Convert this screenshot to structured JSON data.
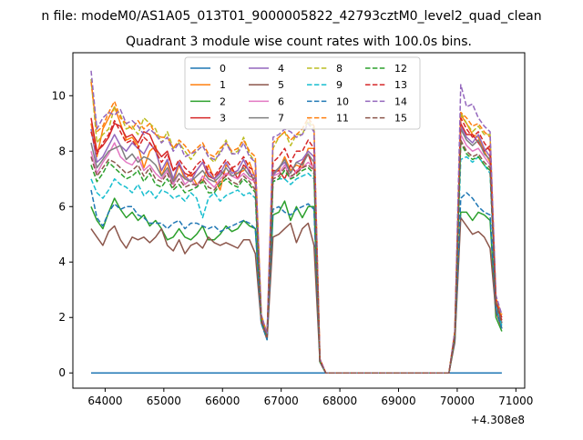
{
  "suptitle": "n file: modeM0/AS1A05_013T01_9000005822_42793cztM0_level2_quad_clean",
  "chart_data": {
    "type": "line",
    "title": "Quadrant 3 module wise count rates with 100.0s bins.",
    "xlabel": "",
    "ylabel": "",
    "x_offset_label": "+4.308e8",
    "xlim": [
      63450,
      71150
    ],
    "ylim": [
      -0.55,
      11.55
    ],
    "xticks": [
      64000,
      65000,
      66000,
      67000,
      68000,
      69000,
      70000,
      71000
    ],
    "yticks": [
      0,
      2,
      4,
      6,
      8,
      10
    ],
    "grid": false,
    "legend_placement": "top-center",
    "legend_columns": 4,
    "x": [
      63760,
      63860,
      63960,
      64060,
      64160,
      64260,
      64360,
      64460,
      64560,
      64660,
      64760,
      64860,
      64960,
      65060,
      65160,
      65260,
      65360,
      65460,
      65560,
      65660,
      65760,
      65860,
      65960,
      66060,
      66160,
      66260,
      66360,
      66460,
      66560,
      66660,
      66760,
      66860,
      66960,
      67060,
      67160,
      67260,
      67360,
      67460,
      67560,
      67660,
      67760,
      67860,
      67960,
      68060,
      69860,
      69960,
      70060,
      70160,
      70260,
      70360,
      70460,
      70560,
      70660,
      70760
    ],
    "series": [
      {
        "name": "0",
        "color": "#1f77b4",
        "dash": "solid",
        "values": [
          0,
          0,
          0,
          0,
          0,
          0,
          0,
          0,
          0,
          0,
          0,
          0,
          0,
          0,
          0,
          0,
          0,
          0,
          0,
          0,
          0,
          0,
          0,
          0,
          0,
          0,
          0,
          0,
          0,
          0,
          0,
          0,
          0,
          0,
          0,
          0,
          0,
          0,
          0,
          0,
          0,
          0,
          0,
          0,
          0,
          0,
          0,
          0,
          0,
          0,
          0,
          0,
          0,
          0
        ]
      },
      {
        "name": "1",
        "color": "#ff7f0e",
        "dash": "solid",
        "values": [
          9.0,
          7.8,
          8.8,
          9.2,
          9.6,
          9.0,
          8.4,
          8.5,
          8.2,
          7.4,
          8.0,
          8.2,
          7.1,
          7.6,
          6.9,
          7.5,
          7.0,
          7.2,
          6.8,
          6.9,
          7.5,
          7.0,
          6.6,
          7.5,
          7.3,
          7.2,
          7.3,
          7.6,
          7.0,
          2.0,
          1.3,
          7.2,
          7.3,
          7.8,
          7.3,
          7.5,
          7.4,
          8.1,
          8.1,
          0.5,
          0,
          0,
          0,
          0,
          0,
          1.5,
          9.3,
          9.0,
          8.6,
          8.5,
          8.0,
          7.6,
          2.5,
          1.6
        ]
      },
      {
        "name": "2",
        "color": "#2ca02c",
        "dash": "solid",
        "values": [
          6.0,
          5.5,
          5.2,
          5.8,
          6.3,
          5.9,
          5.6,
          5.8,
          5.5,
          5.7,
          5.3,
          5.5,
          5.2,
          4.8,
          4.9,
          5.2,
          4.9,
          4.8,
          5.0,
          5.3,
          4.8,
          4.8,
          5.0,
          5.3,
          5.1,
          5.2,
          5.5,
          5.3,
          5.2,
          1.9,
          1.2,
          5.7,
          5.8,
          6.2,
          5.5,
          6.0,
          5.6,
          6.0,
          6.0,
          0.4,
          0,
          0,
          0,
          0,
          0,
          1.2,
          5.8,
          5.8,
          5.5,
          5.8,
          5.7,
          5.5,
          2.0,
          1.5
        ]
      },
      {
        "name": "3",
        "color": "#d62728",
        "dash": "solid",
        "values": [
          9.2,
          8.0,
          8.2,
          8.5,
          9.0,
          8.9,
          8.5,
          8.6,
          8.3,
          8.7,
          8.6,
          8.1,
          7.8,
          8.0,
          7.3,
          7.5,
          7.2,
          7.1,
          7.3,
          7.6,
          7.1,
          7.0,
          7.3,
          7.1,
          7.4,
          7.0,
          7.5,
          7.3,
          6.8,
          1.9,
          1.3,
          7.3,
          7.3,
          7.0,
          7.5,
          7.2,
          7.6,
          7.9,
          7.3,
          0.4,
          0,
          0,
          0,
          0,
          0,
          1.4,
          9.0,
          8.6,
          8.6,
          8.3,
          8.0,
          8.2,
          2.6,
          2.0
        ]
      },
      {
        "name": "4",
        "color": "#9467bd",
        "dash": "solid",
        "values": [
          8.8,
          7.6,
          7.8,
          8.2,
          8.6,
          8.2,
          8.0,
          8.3,
          8.1,
          7.9,
          8.3,
          8.0,
          7.3,
          7.7,
          7.0,
          7.6,
          7.1,
          6.9,
          7.3,
          7.6,
          7.2,
          7.0,
          7.2,
          7.6,
          7.2,
          7.3,
          7.7,
          7.2,
          7.1,
          1.9,
          1.3,
          7.1,
          7.4,
          7.6,
          7.2,
          7.6,
          7.7,
          8.0,
          7.8,
          0.4,
          0,
          0,
          0,
          0,
          0,
          1.4,
          8.9,
          8.5,
          8.3,
          8.6,
          8.1,
          7.8,
          2.6,
          1.8
        ]
      },
      {
        "name": "5",
        "color": "#8c564b",
        "dash": "solid",
        "values": [
          5.2,
          4.9,
          4.6,
          5.1,
          5.3,
          4.8,
          4.5,
          4.9,
          4.8,
          4.9,
          4.7,
          4.9,
          5.2,
          4.6,
          4.4,
          4.8,
          4.3,
          4.6,
          4.7,
          4.5,
          4.9,
          4.7,
          4.6,
          4.7,
          4.6,
          4.5,
          4.8,
          4.8,
          4.3,
          1.8,
          1.2,
          4.9,
          5.0,
          5.2,
          5.4,
          4.7,
          5.2,
          5.4,
          4.6,
          0.4,
          0,
          0,
          0,
          0,
          0,
          1.1,
          5.6,
          5.3,
          5.0,
          5.1,
          4.9,
          4.5,
          2.2,
          1.6
        ]
      },
      {
        "name": "6",
        "color": "#e377c2",
        "dash": "solid",
        "values": [
          8.0,
          7.2,
          7.6,
          7.9,
          8.3,
          7.8,
          7.6,
          7.5,
          7.8,
          7.3,
          7.5,
          7.2,
          7.0,
          7.3,
          6.8,
          7.2,
          6.8,
          7.0,
          6.7,
          7.1,
          6.9,
          6.7,
          7.0,
          7.2,
          7.1,
          7.0,
          7.2,
          7.0,
          6.9,
          1.9,
          1.3,
          7.1,
          7.2,
          7.5,
          7.0,
          7.3,
          7.4,
          7.6,
          7.4,
          0.4,
          0,
          0,
          0,
          0,
          0,
          1.3,
          8.6,
          8.2,
          8.0,
          8.1,
          7.8,
          7.5,
          2.5,
          1.8
        ]
      },
      {
        "name": "7",
        "color": "#7f7f7f",
        "dash": "solid",
        "values": [
          8.3,
          7.4,
          7.7,
          8.0,
          8.1,
          8.2,
          7.7,
          7.9,
          7.6,
          7.8,
          7.7,
          7.5,
          7.1,
          7.4,
          6.9,
          7.2,
          7.0,
          6.9,
          7.1,
          7.3,
          7.0,
          6.9,
          7.1,
          7.4,
          7.1,
          7.2,
          7.4,
          7.1,
          7.0,
          2.0,
          1.3,
          7.2,
          7.4,
          7.7,
          7.2,
          7.6,
          7.5,
          7.9,
          7.6,
          0.4,
          0,
          0,
          0,
          0,
          0,
          1.4,
          8.8,
          8.4,
          8.2,
          8.4,
          7.9,
          7.7,
          2.6,
          1.8
        ]
      },
      {
        "name": "8",
        "color": "#bcbd22",
        "dash": "dashed",
        "values": [
          10.6,
          8.3,
          8.6,
          8.8,
          9.6,
          9.3,
          8.8,
          8.9,
          8.6,
          9.2,
          9.0,
          8.8,
          8.3,
          8.7,
          8.1,
          8.3,
          8.0,
          7.7,
          8.0,
          8.2,
          7.8,
          7.6,
          8.0,
          8.4,
          7.9,
          8.0,
          8.5,
          7.9,
          7.6,
          2.1,
          1.4,
          8.1,
          8.5,
          8.7,
          8.2,
          8.6,
          8.6,
          9.1,
          8.8,
          0.5,
          0,
          0,
          0,
          0,
          0,
          1.5,
          9.4,
          9.0,
          8.7,
          8.9,
          8.6,
          8.6,
          2.7,
          2.0
        ]
      },
      {
        "name": "9",
        "color": "#17becf",
        "dash": "dashed",
        "values": [
          7.0,
          6.5,
          6.3,
          6.6,
          7.0,
          6.8,
          6.7,
          6.5,
          6.8,
          6.4,
          6.6,
          6.3,
          6.6,
          6.5,
          6.3,
          6.4,
          6.2,
          6.5,
          6.3,
          5.6,
          6.3,
          6.5,
          6.2,
          6.4,
          6.5,
          6.6,
          6.4,
          6.5,
          6.3,
          1.8,
          1.2,
          6.9,
          7.0,
          7.0,
          6.8,
          7.0,
          7.1,
          7.2,
          7.0,
          0.4,
          0,
          0,
          0,
          0,
          0,
          1.3,
          7.7,
          7.8,
          7.6,
          7.8,
          7.5,
          7.2,
          2.4,
          1.7
        ]
      },
      {
        "name": "10",
        "color": "#1f77b4",
        "dash": "dashed",
        "values": [
          6.6,
          5.6,
          5.3,
          5.8,
          6.1,
          5.9,
          6.0,
          6.0,
          5.7,
          5.6,
          5.4,
          5.4,
          5.4,
          5.2,
          5.4,
          5.5,
          5.2,
          5.4,
          5.4,
          5.3,
          5.2,
          5.3,
          5.1,
          5.2,
          5.3,
          5.4,
          5.5,
          5.4,
          5.2,
          1.8,
          1.2,
          5.9,
          6.0,
          5.8,
          5.7,
          5.9,
          6.0,
          6.1,
          5.9,
          0.4,
          0,
          0,
          0,
          0,
          0,
          1.2,
          6.3,
          6.5,
          6.3,
          6.0,
          5.8,
          5.7,
          2.3,
          1.6
        ]
      },
      {
        "name": "11",
        "color": "#ff7f0e",
        "dash": "dashed",
        "values": [
          10.5,
          8.7,
          8.9,
          9.4,
          9.8,
          9.2,
          9.0,
          8.8,
          9.1,
          8.8,
          9.0,
          8.6,
          8.5,
          8.5,
          8.1,
          8.4,
          8.2,
          7.9,
          8.1,
          8.3,
          7.9,
          7.8,
          8.1,
          8.3,
          8.0,
          8.1,
          8.4,
          8.0,
          7.8,
          2.1,
          1.4,
          8.3,
          8.5,
          8.7,
          8.4,
          8.6,
          8.8,
          9.2,
          8.9,
          0.5,
          0,
          0,
          0,
          0,
          0,
          1.5,
          9.4,
          9.2,
          8.9,
          9.0,
          8.7,
          8.5,
          2.7,
          2.1
        ]
      },
      {
        "name": "12",
        "color": "#2ca02c",
        "dash": "dashed",
        "values": [
          7.5,
          6.9,
          7.2,
          7.6,
          7.4,
          7.2,
          7.0,
          7.1,
          7.3,
          6.9,
          7.2,
          6.8,
          6.7,
          7.0,
          6.6,
          6.8,
          6.5,
          6.6,
          6.7,
          6.9,
          6.5,
          6.5,
          6.8,
          7.0,
          6.8,
          6.7,
          7.0,
          6.8,
          6.5,
          1.9,
          1.3,
          6.9,
          7.0,
          7.3,
          7.0,
          7.1,
          7.3,
          7.4,
          7.2,
          0.4,
          0,
          0,
          0,
          0,
          0,
          1.3,
          8.3,
          7.9,
          7.7,
          7.8,
          7.5,
          7.3,
          2.5,
          1.8
        ]
      },
      {
        "name": "13",
        "color": "#d62728",
        "dash": "dashed",
        "values": [
          8.7,
          7.9,
          8.3,
          8.6,
          9.1,
          8.7,
          8.3,
          8.4,
          8.1,
          8.5,
          8.3,
          8.0,
          7.6,
          7.9,
          7.3,
          7.7,
          7.4,
          7.2,
          7.5,
          7.7,
          7.3,
          7.1,
          7.4,
          7.7,
          7.4,
          7.5,
          7.8,
          7.4,
          7.3,
          2.0,
          1.3,
          7.6,
          7.8,
          8.1,
          7.6,
          8.0,
          8.0,
          8.4,
          8.1,
          0.5,
          0,
          0,
          0,
          0,
          0,
          1.4,
          9.2,
          8.8,
          8.5,
          8.7,
          8.3,
          8.0,
          2.6,
          1.9
        ]
      },
      {
        "name": "14",
        "color": "#9467bd",
        "dash": "dashed",
        "values": [
          10.9,
          8.8,
          9.2,
          9.4,
          9.3,
          9.5,
          9.0,
          9.1,
          8.9,
          8.6,
          8.8,
          8.6,
          8.3,
          8.5,
          8.0,
          8.3,
          7.8,
          7.9,
          8.0,
          8.2,
          7.8,
          7.7,
          7.9,
          8.3,
          7.9,
          7.9,
          8.3,
          7.8,
          7.6,
          2.1,
          1.4,
          8.5,
          8.6,
          8.8,
          8.7,
          8.5,
          8.6,
          9.0,
          8.7,
          0.5,
          0,
          0,
          0,
          0,
          0,
          1.5,
          10.4,
          9.6,
          9.7,
          9.2,
          8.9,
          8.7,
          2.8,
          2.1
        ]
      },
      {
        "name": "15",
        "color": "#8c564b",
        "dash": "dashed",
        "values": [
          7.8,
          7.1,
          7.4,
          7.7,
          7.6,
          7.4,
          7.2,
          7.3,
          7.5,
          7.1,
          7.4,
          7.0,
          6.9,
          7.2,
          6.7,
          7.0,
          6.7,
          6.8,
          6.8,
          7.0,
          6.7,
          6.6,
          6.9,
          7.1,
          6.9,
          6.8,
          7.1,
          6.9,
          6.6,
          1.9,
          1.3,
          7.0,
          7.1,
          7.4,
          7.1,
          7.2,
          7.4,
          7.5,
          7.3,
          0.4,
          0,
          0,
          0,
          0,
          0,
          1.3,
          8.4,
          8.0,
          7.8,
          7.9,
          7.6,
          7.4,
          2.5,
          1.8
        ]
      }
    ]
  }
}
